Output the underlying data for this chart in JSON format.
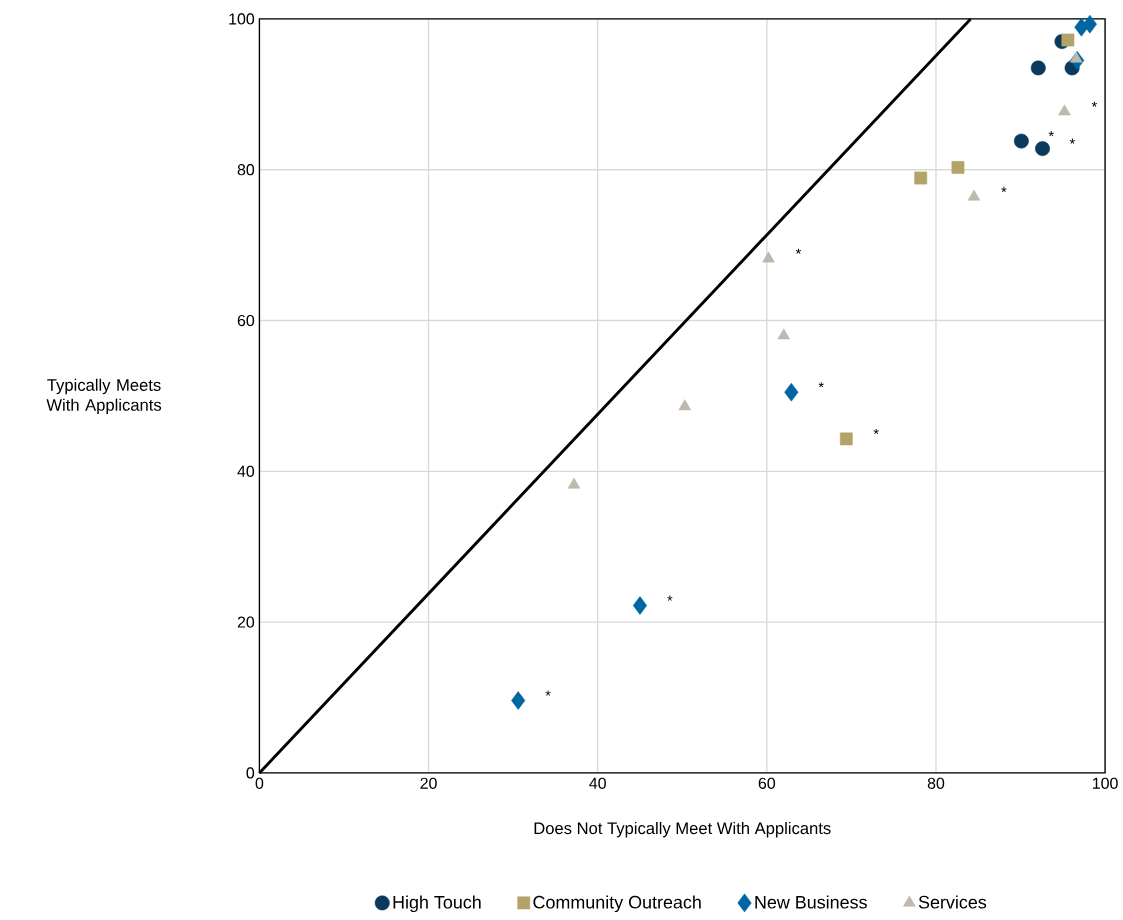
{
  "chart_data": {
    "type": "scatter",
    "xlabel": "Does Not Typically Meet With Applicants",
    "ylabel": "Typically Meets With Applicants",
    "xlim": [
      0,
      100
    ],
    "ylim": [
      0,
      100
    ],
    "xticks": [
      0,
      20,
      40,
      60,
      80,
      100
    ],
    "yticks": [
      0,
      20,
      40,
      60,
      80,
      100
    ],
    "grid": true,
    "legend": "bottom",
    "series": [
      {
        "name": "High Touch",
        "color": "#0b3a5c",
        "marker": "circle",
        "x": [
          94.9,
          92.1,
          96.1,
          90.1,
          92.6
        ],
        "values": [
          97.0,
          93.5,
          93.5,
          83.8,
          82.8
        ]
      },
      {
        "name": "Community Outreach",
        "color": "#b3a369",
        "marker": "square",
        "x": [
          95.6,
          78.2,
          82.6,
          69.4
        ],
        "values": [
          97.2,
          78.9,
          80.3,
          44.3
        ]
      },
      {
        "name": "New Business",
        "color": "#0066a1",
        "marker": "diamond",
        "x": [
          97.2,
          98.2,
          96.7,
          62.9,
          45.0,
          30.6
        ],
        "values": [
          98.9,
          99.3,
          94.5,
          50.5,
          22.2,
          9.6
        ]
      },
      {
        "name": "Services",
        "color": "#bfb8ad",
        "marker": "triangle",
        "x": [
          96.6,
          95.2,
          84.5,
          60.2,
          62.0,
          50.3,
          37.2
        ],
        "values": [
          94.7,
          87.7,
          76.4,
          68.2,
          58.0,
          48.6,
          38.2
        ]
      },
      {
        "type": "line",
        "color": "#000000",
        "marker": "none",
        "x": [
          0,
          84.1
        ],
        "values": [
          0,
          100
        ]
      }
    ],
    "annotations": [
      {
        "text": "*",
        "x": 95.2,
        "y": 87.7
      },
      {
        "text": "*",
        "x": 90.1,
        "y": 83.8
      },
      {
        "text": "*",
        "x": 92.6,
        "y": 82.8
      },
      {
        "text": "*",
        "x": 84.5,
        "y": 76.4
      },
      {
        "text": "*",
        "x": 60.2,
        "y": 68.2
      },
      {
        "text": "*",
        "x": 62.9,
        "y": 50.5
      },
      {
        "text": "*",
        "x": 69.4,
        "y": 44.3
      },
      {
        "text": "*",
        "x": 45.0,
        "y": 22.2
      },
      {
        "text": "*",
        "x": 30.6,
        "y": 9.6
      }
    ]
  }
}
